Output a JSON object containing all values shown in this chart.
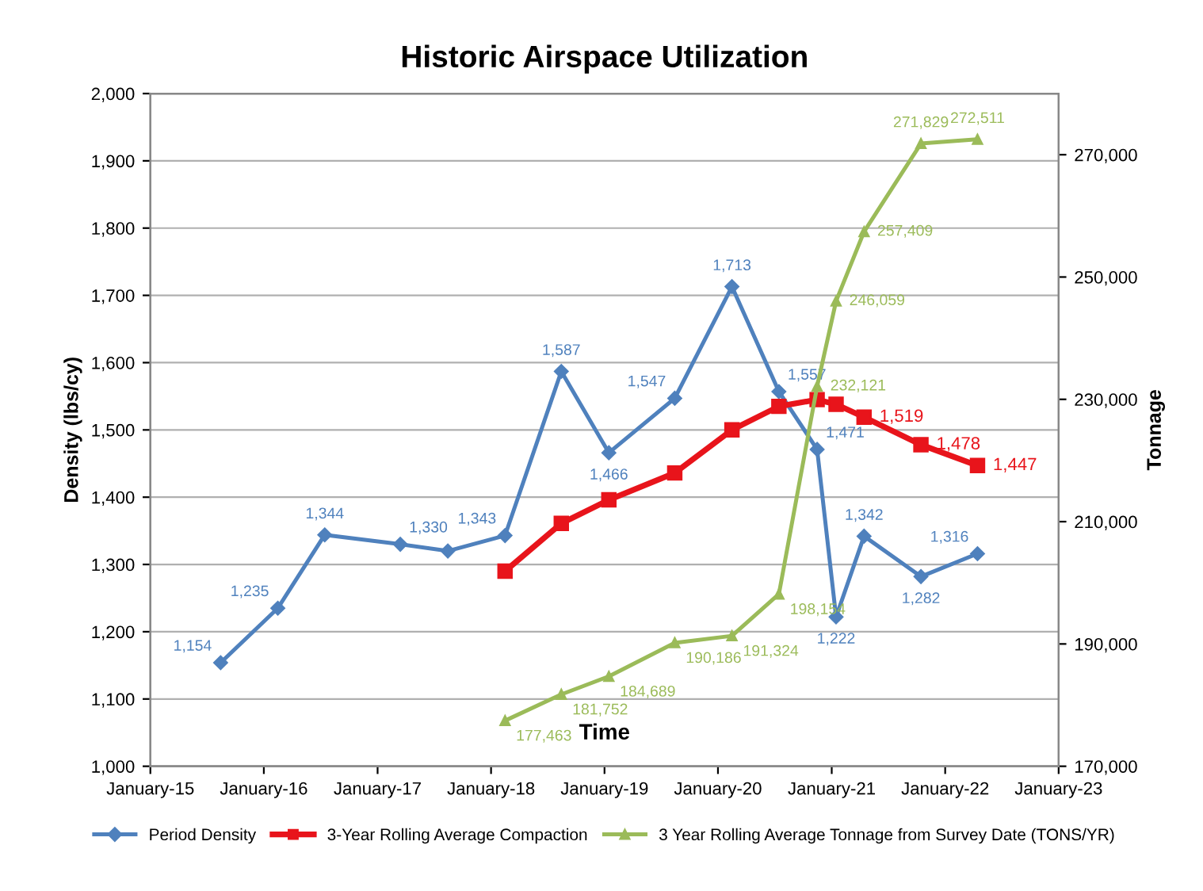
{
  "chart_data": {
    "type": "line",
    "title": "Historic Airspace Utilization",
    "xlabel": "Time",
    "ylabel": "Density (lbs/cy)",
    "y2label": "Tonnage",
    "xlim": [
      "2015-01-01",
      "2023-01-01"
    ],
    "xticks": [
      {
        "value": "2015-01-01",
        "label": "January-15"
      },
      {
        "value": "2016-01-01",
        "label": "January-16"
      },
      {
        "value": "2017-01-01",
        "label": "January-17"
      },
      {
        "value": "2018-01-01",
        "label": "January-18"
      },
      {
        "value": "2019-01-01",
        "label": "January-19"
      },
      {
        "value": "2020-01-01",
        "label": "January-20"
      },
      {
        "value": "2021-01-01",
        "label": "January-21"
      },
      {
        "value": "2022-01-01",
        "label": "January-22"
      },
      {
        "value": "2023-01-01",
        "label": "January-23"
      }
    ],
    "ylim": [
      1000,
      2000
    ],
    "yticks": [
      {
        "value": 1000,
        "label": "1,000"
      },
      {
        "value": 1100,
        "label": "1,100"
      },
      {
        "value": 1200,
        "label": "1,200"
      },
      {
        "value": 1300,
        "label": "1,300"
      },
      {
        "value": 1400,
        "label": "1,400"
      },
      {
        "value": 1500,
        "label": "1,500"
      },
      {
        "value": 1600,
        "label": "1,600"
      },
      {
        "value": 1700,
        "label": "1,700"
      },
      {
        "value": 1800,
        "label": "1,800"
      },
      {
        "value": 1900,
        "label": "1,900"
      },
      {
        "value": 2000,
        "label": "2,000"
      }
    ],
    "y2lim": [
      170000,
      280000
    ],
    "y2ticks": [
      {
        "value": 170000,
        "label": "170,000"
      },
      {
        "value": 190000,
        "label": "190,000"
      },
      {
        "value": 210000,
        "label": "210,000"
      },
      {
        "value": 230000,
        "label": "230,000"
      },
      {
        "value": 250000,
        "label": "250,000"
      },
      {
        "value": 270000,
        "label": "270,000"
      }
    ],
    "grid": "y",
    "legend": "bottom",
    "series": [
      {
        "name": "Period Density",
        "color": "#4f81bd",
        "marker": "diamond",
        "x": [
          "2015-08-15",
          "2016-02-15",
          "2016-07-15",
          "2017-03-15",
          "2017-08-15",
          "2018-02-15",
          "2018-08-15",
          "2019-01-15",
          "2019-08-15",
          "2020-02-15",
          "2020-07-15",
          "2020-11-15",
          "2021-01-15",
          "2021-04-15",
          "2021-10-15",
          "2022-04-15"
        ],
        "values": [
          1154,
          1235,
          1344,
          1330,
          1320,
          1343,
          1587,
          1466,
          1547,
          1713,
          1557,
          1471,
          1222,
          1342,
          1282,
          1316
        ],
        "value_labels": [
          "1,154",
          "1,235",
          "1,344",
          "1,330",
          null,
          "1,343",
          "1,587",
          "1,466",
          "1,547",
          "1,713",
          "1,557",
          "1,471",
          "1,222",
          "1,342",
          "1,282",
          "1,316"
        ]
      },
      {
        "name": "3-Year Rolling Average Compaction",
        "color": "#e8141b",
        "marker": "square",
        "x": [
          "2018-02-15",
          "2018-08-15",
          "2019-01-15",
          "2019-08-15",
          "2020-02-15",
          "2020-07-15",
          "2020-11-15",
          "2021-01-15",
          "2021-04-15",
          "2021-10-15",
          "2022-04-15"
        ],
        "values": [
          1290,
          1361,
          1396,
          1436,
          1500,
          1535,
          1545,
          1538,
          1519,
          1478,
          1447
        ],
        "value_labels": [
          null,
          null,
          null,
          null,
          null,
          null,
          null,
          null,
          "1,519",
          "1,478",
          "1,447"
        ]
      },
      {
        "name": "3 Year Rolling Average Tonnage from Survey Date (TONS/YR)",
        "color": "#9bbb59",
        "marker": "triangle",
        "axis": "y2",
        "x": [
          "2018-02-15",
          "2018-08-15",
          "2019-01-15",
          "2019-08-15",
          "2020-02-15",
          "2020-07-15",
          "2020-11-15",
          "2021-01-15",
          "2021-04-15",
          "2021-10-15",
          "2022-04-15"
        ],
        "values": [
          177463,
          181752,
          184689,
          190186,
          191324,
          198154,
          232121,
          246059,
          257409,
          271829,
          272511
        ],
        "value_labels": [
          "177,463",
          "181,752",
          "184,689",
          "190,186",
          "191,324",
          "198,154",
          "232,121",
          "246,059",
          "257,409",
          "271,829",
          "272,511"
        ]
      }
    ]
  }
}
